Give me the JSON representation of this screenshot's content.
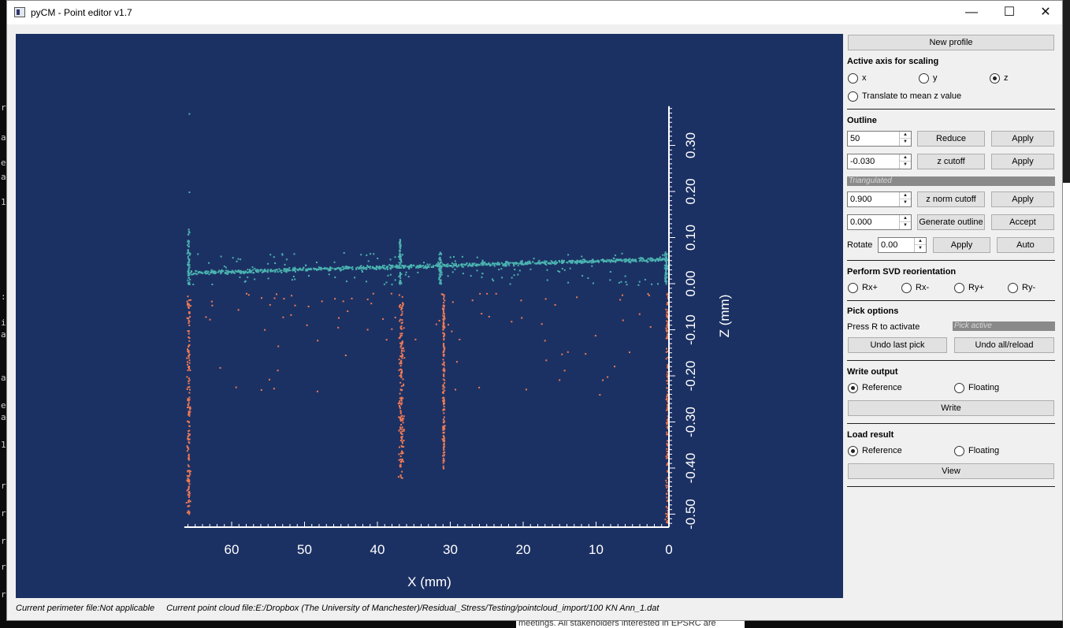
{
  "window": {
    "title": "pyCM - Point editor v1.7",
    "controls": {
      "minimize": "—",
      "maximize": "☐",
      "close": "✕"
    }
  },
  "plot": {
    "xlabel": "X (mm)",
    "ylabel": "Z (mm)",
    "x_ticks": [
      "60",
      "50",
      "40",
      "30",
      "20",
      "10",
      "0"
    ],
    "z_ticks": [
      "0.30",
      "0.20",
      "0.10",
      "0.00",
      "-0.10",
      "-0.20",
      "-0.30",
      "-0.40",
      "-0.50"
    ],
    "colors": {
      "background": "#1c3163",
      "upper_points": "#4ab3b0",
      "lower_points": "#f07a55",
      "axes": "#ffffff"
    }
  },
  "panel": {
    "new_profile": "New profile",
    "scaling": {
      "title": "Active axis for scaling",
      "x": "x",
      "y": "y",
      "z": "z",
      "selected": "z",
      "translate": "Translate to mean z value"
    },
    "outline": {
      "title": "Outline",
      "reduce_value": "50",
      "reduce": "Reduce",
      "apply1": "Apply",
      "zcut_value": "-0.030",
      "zcut": "z cutoff",
      "apply2": "Apply",
      "triangulated": "Triangulated",
      "znorm_value": "0.900",
      "znorm": "z norm cutoff",
      "apply3": "Apply",
      "gen_value": "0.000",
      "generate": "Generate outline",
      "accept": "Accept",
      "rotate_label": "Rotate",
      "rotate_value": "0.00",
      "apply4": "Apply",
      "auto": "Auto"
    },
    "svd": {
      "title": "Perform SVD reorientation",
      "rxp": "Rx+",
      "rxm": "Rx-",
      "ryp": "Ry+",
      "rym": "Ry-"
    },
    "pick": {
      "title": "Pick options",
      "press": "Press R to activate",
      "active": "Pick active",
      "undo_last": "Undo last pick",
      "undo_all": "Undo all/reload"
    },
    "write": {
      "title": "Write output",
      "reference": "Reference",
      "floating": "Floating",
      "button": "Write"
    },
    "load": {
      "title": "Load result",
      "reference": "Reference",
      "floating": "Floating",
      "button": "View"
    }
  },
  "status": {
    "perimeter": "Current perimeter file:Not applicable",
    "cloud": "Current point cloud file:E:/Dropbox (The University of Manchester)/Residual_Stress/Testing/pointcloud_import/100 KN Ann_1.dat"
  },
  "background": {
    "terminal_chars": [
      "r",
      "a",
      "e",
      "a",
      "1",
      ":",
      "i",
      "a",
      "a",
      "e",
      "a",
      "1",
      "r",
      "r",
      "r",
      "r",
      "r"
    ],
    "doc_text": "meetings. All stakeholders interested in EPSRC are"
  }
}
